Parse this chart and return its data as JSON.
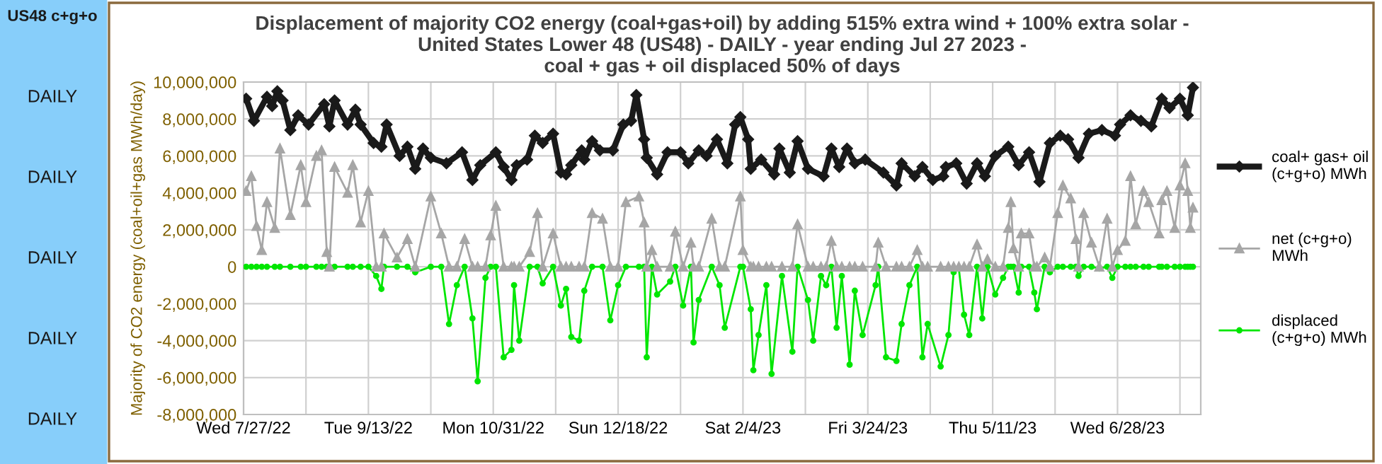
{
  "chart_data": {
    "type": "line",
    "title": "Displacement of majority CO2 energy (coal+gas+oil) by adding 515% extra wind + 100% extra solar -\nUnited States Lower 48 (US48) - DAILY - year ending Jul 27 2023 -\ncoal + gas + oil displaced 50% of days",
    "ylabel": "Majority of CO2 energy (coal+oil+gas MWh/day)",
    "annotations": [
      "US48 c+g+o",
      "DAILY",
      "DAILY",
      "DAILY",
      "DAILY",
      "DAILY"
    ],
    "x": [
      "2022-07-28",
      "2022-07-30",
      "2022-08-01",
      "2022-08-03",
      "2022-08-05",
      "2022-08-08",
      "2022-08-10",
      "2022-08-14",
      "2022-08-18",
      "2022-08-20",
      "2022-08-24",
      "2022-08-26",
      "2022-08-28",
      "2022-08-29",
      "2022-08-31",
      "2022-09-05",
      "2022-09-07",
      "2022-09-10",
      "2022-09-13",
      "2022-09-16",
      "2022-09-18",
      "2022-09-19",
      "2022-09-24",
      "2022-09-28",
      "2022-10-01",
      "2022-10-07",
      "2022-10-11",
      "2022-10-14",
      "2022-10-17",
      "2022-10-20",
      "2022-10-23",
      "2022-10-25",
      "2022-10-28",
      "2022-10-30",
      "2022-11-01",
      "2022-11-04",
      "2022-11-07",
      "2022-11-08",
      "2022-11-10",
      "2022-11-14",
      "2022-11-17",
      "2022-11-19",
      "2022-11-23",
      "2022-11-26",
      "2022-11-28",
      "2022-11-30",
      "2022-12-03",
      "2022-12-05",
      "2022-12-08",
      "2022-12-12",
      "2022-12-15",
      "2022-12-18",
      "2022-12-21",
      "2022-12-26",
      "2022-12-28",
      "2022-12-29",
      "2022-12-31",
      "2023-01-02",
      "2023-01-07",
      "2023-01-09",
      "2023-01-12",
      "2023-01-15",
      "2023-01-16",
      "2023-01-18",
      "2023-01-23",
      "2023-01-26",
      "2023-01-28",
      "2023-02-03",
      "2023-02-04",
      "2023-02-07",
      "2023-02-08",
      "2023-02-10",
      "2023-02-13",
      "2023-02-15",
      "2023-02-19",
      "2023-02-23",
      "2023-02-25",
      "2023-03-01",
      "2023-03-03",
      "2023-03-06",
      "2023-03-08",
      "2023-03-10",
      "2023-03-12",
      "2023-03-14",
      "2023-03-17",
      "2023-03-19",
      "2023-03-22",
      "2023-03-27",
      "2023-03-28",
      "2023-03-31",
      "2023-04-04",
      "2023-04-06",
      "2023-04-09",
      "2023-04-12",
      "2023-04-14",
      "2023-04-16",
      "2023-04-21",
      "2023-04-24",
      "2023-04-26",
      "2023-04-28",
      "2023-04-30",
      "2023-05-02",
      "2023-05-05",
      "2023-05-07",
      "2023-05-09",
      "2023-05-12",
      "2023-05-15",
      "2023-05-17",
      "2023-05-18",
      "2023-05-19",
      "2023-05-21",
      "2023-05-22",
      "2023-05-25",
      "2023-05-27",
      "2023-05-28",
      "2023-05-31",
      "2023-06-02",
      "2023-06-05",
      "2023-06-07",
      "2023-06-10",
      "2023-06-12",
      "2023-06-13",
      "2023-06-15",
      "2023-06-18",
      "2023-06-21",
      "2023-06-24",
      "2023-06-26",
      "2023-06-28",
      "2023-07-01",
      "2023-07-03",
      "2023-07-05",
      "2023-07-08",
      "2023-07-10",
      "2023-07-14",
      "2023-07-15",
      "2023-07-17",
      "2023-07-20",
      "2023-07-22",
      "2023-07-24",
      "2023-07-25",
      "2023-07-26",
      "2023-07-27"
    ],
    "series": [
      {
        "name": "coal+ gas+ oil\n(c+g+o) MWh",
        "color": "#1a1a1a",
        "marker": "diamond",
        "x": [
          "2022-07-28",
          "2022-07-31",
          "2022-08-05",
          "2022-08-07",
          "2022-08-09",
          "2022-08-11",
          "2022-08-14",
          "2022-08-17",
          "2022-08-21",
          "2022-08-27",
          "2022-08-29",
          "2022-08-31",
          "2022-09-05",
          "2022-09-08",
          "2022-09-10",
          "2022-09-15",
          "2022-09-18",
          "2022-09-20",
          "2022-09-25",
          "2022-09-28",
          "2022-10-01",
          "2022-10-04",
          "2022-10-07",
          "2022-10-13",
          "2022-10-19",
          "2022-10-23",
          "2022-10-26",
          "2022-11-01",
          "2022-11-04",
          "2022-11-07",
          "2022-11-09",
          "2022-11-13",
          "2022-11-16",
          "2022-11-19",
          "2022-11-23",
          "2022-11-26",
          "2022-11-28",
          "2022-11-30",
          "2022-12-04",
          "2022-12-05",
          "2022-12-08",
          "2022-12-11",
          "2022-12-16",
          "2022-12-20",
          "2022-12-23",
          "2022-12-25",
          "2022-12-28",
          "2022-12-29",
          "2023-01-02",
          "2023-01-06",
          "2023-01-11",
          "2023-01-14",
          "2023-01-18",
          "2023-01-21",
          "2023-01-25",
          "2023-01-29",
          "2023-02-01",
          "2023-02-03",
          "2023-02-06",
          "2023-02-07",
          "2023-02-11",
          "2023-02-16",
          "2023-02-18",
          "2023-02-22",
          "2023-02-25",
          "2023-03-01",
          "2023-03-07",
          "2023-03-10",
          "2023-03-13",
          "2023-03-16",
          "2023-03-19",
          "2023-03-23",
          "2023-03-30",
          "2023-04-04",
          "2023-04-06",
          "2023-04-11",
          "2023-04-14",
          "2023-04-18",
          "2023-04-22",
          "2023-04-23",
          "2023-04-27",
          "2023-05-01",
          "2023-05-05",
          "2023-05-08",
          "2023-05-12",
          "2023-05-17",
          "2023-05-21",
          "2023-05-25",
          "2023-05-29",
          "2023-06-02",
          "2023-06-06",
          "2023-06-09",
          "2023-06-13",
          "2023-06-17",
          "2023-06-22",
          "2023-06-27",
          "2023-06-29",
          "2023-07-03",
          "2023-07-07",
          "2023-07-11",
          "2023-07-15",
          "2023-07-18",
          "2023-07-22",
          "2023-07-25",
          "2023-07-27"
        ],
        "values": [
          9100000,
          7900000,
          9200000,
          8700000,
          9500000,
          9000000,
          7400000,
          8200000,
          7700000,
          8800000,
          7600000,
          9000000,
          7700000,
          8500000,
          7700000,
          6700000,
          6500000,
          7700000,
          6000000,
          6500000,
          5300000,
          6400000,
          5900000,
          5600000,
          6200000,
          4700000,
          5500000,
          6200000,
          5400000,
          4700000,
          5500000,
          5800000,
          7100000,
          6700000,
          7200000,
          5100000,
          5000000,
          5500000,
          6300000,
          5800000,
          6800000,
          6300000,
          6300000,
          7700000,
          7900000,
          9300000,
          6900000,
          5900000,
          5000000,
          6200000,
          6200000,
          5600000,
          6300000,
          6000000,
          6900000,
          5600000,
          7700000,
          8100000,
          6900000,
          5300000,
          5800000,
          5000000,
          6400000,
          5100000,
          6800000,
          5300000,
          4900000,
          6400000,
          5400000,
          6400000,
          5600000,
          5800000,
          5100000,
          4400000,
          5600000,
          4900000,
          5400000,
          4700000,
          4900000,
          5400000,
          5600000,
          4500000,
          5600000,
          4900000,
          6000000,
          6500000,
          5500000,
          6200000,
          4600000,
          6700000,
          7100000,
          6900000,
          5900000,
          7200000,
          7400000,
          7100000,
          7700000,
          8200000,
          7900000,
          7600000,
          9100000,
          8600000,
          9100000,
          8200000,
          9700000
        ]
      },
      {
        "name": "net (c+g+o)\nMWh",
        "color": "#a6a6a6",
        "marker": "triangle",
        "values": [
          4100000,
          4900000,
          2200000,
          900000,
          3500000,
          2100000,
          6400000,
          2800000,
          5500000,
          3500000,
          6000000,
          6300000,
          800000,
          0,
          5400000,
          4000000,
          5500000,
          2400000,
          4100000,
          0,
          0,
          1800000,
          500000,
          1500000,
          0,
          3800000,
          1800000,
          0,
          0,
          1500000,
          0,
          0,
          0,
          1700000,
          3300000,
          0,
          0,
          0,
          0,
          800000,
          2900000,
          0,
          1800000,
          0,
          0,
          0,
          0,
          0,
          2900000,
          2600000,
          0,
          0,
          3500000,
          3800000,
          2400000,
          0,
          900000,
          0,
          0,
          1900000,
          0,
          1300000,
          0,
          0,
          2600000,
          0,
          0,
          3800000,
          900000,
          0,
          0,
          0,
          0,
          0,
          0,
          0,
          2300000,
          0,
          0,
          0,
          0,
          1400000,
          0,
          0,
          0,
          0,
          0,
          0,
          1300000,
          0,
          0,
          0,
          0,
          900000,
          0,
          0,
          0,
          0,
          0,
          0,
          0,
          0,
          1200000,
          0,
          400000,
          0,
          0,
          2100000,
          3500000,
          1000000,
          0,
          1800000,
          1800000,
          0,
          0,
          500000,
          0,
          2900000,
          4400000,
          3700000,
          1500000,
          0,
          2900000,
          1300000,
          0,
          2600000,
          0,
          900000,
          1400000,
          4900000,
          2300000,
          4100000,
          3500000,
          1800000,
          3600000,
          4100000,
          2100000,
          4400000,
          5600000,
          4100000,
          2100000,
          3200000
        ]
      },
      {
        "name": "displaced\n(c+g+o) MWh",
        "color": "#00e600",
        "marker": "circle",
        "values": [
          0,
          0,
          0,
          0,
          0,
          0,
          0,
          0,
          0,
          0,
          0,
          0,
          0,
          0,
          0,
          0,
          0,
          0,
          0,
          -500000,
          -1200000,
          0,
          0,
          0,
          -300000,
          0,
          0,
          -3100000,
          -1000000,
          0,
          -2800000,
          -6200000,
          -600000,
          0,
          0,
          -4900000,
          -4500000,
          -1000000,
          -4000000,
          0,
          0,
          -900000,
          0,
          -2100000,
          -1200000,
          -3800000,
          -4000000,
          -1300000,
          0,
          0,
          -2900000,
          -1000000,
          0,
          0,
          0,
          -4900000,
          0,
          -1500000,
          -800000,
          0,
          -2100000,
          0,
          -4100000,
          -1800000,
          0,
          -1000000,
          -3300000,
          0,
          0,
          -2300000,
          -5600000,
          -3700000,
          -1000000,
          -5800000,
          -500000,
          -4600000,
          0,
          -1800000,
          -4000000,
          -500000,
          -1000000,
          0,
          -3300000,
          -500000,
          -5300000,
          -1300000,
          -3700000,
          -1000000,
          0,
          -4900000,
          -5100000,
          -3100000,
          -1000000,
          0,
          -4900000,
          -3100000,
          -5400000,
          -3700000,
          -300000,
          -100000,
          -2600000,
          -3700000,
          0,
          -2800000,
          0,
          -1500000,
          -600000,
          0,
          0,
          0,
          -1400000,
          0,
          0,
          -1400000,
          -2300000,
          0,
          -300000,
          0,
          0,
          0,
          0,
          -500000,
          0,
          0,
          -100000,
          0,
          -600000,
          0,
          0,
          0,
          0,
          0,
          0,
          0,
          0,
          0,
          0,
          0,
          0,
          0,
          0,
          0
        ]
      }
    ],
    "xlim": [
      "2022-07-27",
      "2023-07-30"
    ],
    "xticks": [
      {
        "value": "2022-07-27",
        "label": "Wed 7/27/22"
      },
      {
        "value": "2022-08-20",
        "label": null
      },
      {
        "value": "2022-09-13",
        "label": "Tue 9/13/22"
      },
      {
        "value": "2022-10-07",
        "label": null
      },
      {
        "value": "2022-10-31",
        "label": "Mon 10/31/22"
      },
      {
        "value": "2022-11-24",
        "label": null
      },
      {
        "value": "2022-12-18",
        "label": "Sun 12/18/22"
      },
      {
        "value": "2023-01-11",
        "label": null
      },
      {
        "value": "2023-02-04",
        "label": "Sat 2/4/23"
      },
      {
        "value": "2023-02-28",
        "label": null
      },
      {
        "value": "2023-03-24",
        "label": "Fri 3/24/23"
      },
      {
        "value": "2023-04-17",
        "label": null
      },
      {
        "value": "2023-05-11",
        "label": "Thu 5/11/23"
      },
      {
        "value": "2023-06-04",
        "label": null
      },
      {
        "value": "2023-06-28",
        "label": "Wed 6/28/23"
      },
      {
        "value": "2023-07-22",
        "label": null
      }
    ],
    "ylim": [
      -8000000,
      10000000
    ],
    "yticks": [
      {
        "value": -8000000,
        "label": "-8,000,000"
      },
      {
        "value": -6000000,
        "label": "-6,000,000"
      },
      {
        "value": -4000000,
        "label": "-4,000,000"
      },
      {
        "value": -2000000,
        "label": "-2,000,000"
      },
      {
        "value": 0,
        "label": "0"
      },
      {
        "value": 2000000,
        "label": "2,000,000"
      },
      {
        "value": 4000000,
        "label": "4,000,000"
      },
      {
        "value": 6000000,
        "label": "6,000,000"
      },
      {
        "value": 8000000,
        "label": "8,000,000"
      },
      {
        "value": 10000000,
        "label": "10,000,000"
      }
    ],
    "grid": true,
    "legend": "right",
    "line_style": "solid"
  }
}
